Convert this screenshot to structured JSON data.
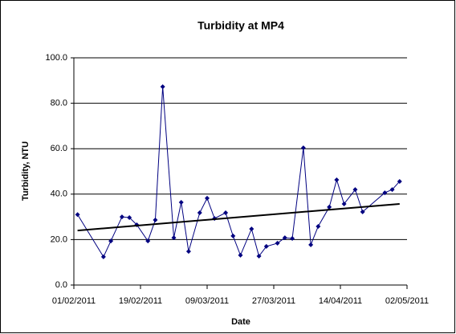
{
  "chart_data": {
    "type": "line",
    "title": "Turbidity at MP4",
    "xlabel": "Date",
    "ylabel": "Turbidity, NTU",
    "x": [
      "2011-02-02",
      "2011-02-09",
      "2011-02-11",
      "2011-02-14",
      "2011-02-16",
      "2011-02-18",
      "2011-02-21",
      "2011-02-23",
      "2011-02-25",
      "2011-02-28",
      "2011-03-02",
      "2011-03-04",
      "2011-03-07",
      "2011-03-09",
      "2011-03-11",
      "2011-03-14",
      "2011-03-16",
      "2011-03-18",
      "2011-03-21",
      "2011-03-23",
      "2011-03-25",
      "2011-03-28",
      "2011-03-30",
      "2011-04-01",
      "2011-04-04",
      "2011-04-06",
      "2011-04-08",
      "2011-04-11",
      "2011-04-13",
      "2011-04-15",
      "2011-04-18",
      "2011-04-20",
      "2011-04-26",
      "2011-04-28",
      "2011-04-30"
    ],
    "series": [
      {
        "color": "#000080",
        "values": [
          31.0,
          12.4,
          19.4,
          30.0,
          29.7,
          26.5,
          19.4,
          28.6,
          87.3,
          20.8,
          36.4,
          14.8,
          31.8,
          38.2,
          29.3,
          31.8,
          21.6,
          13.1,
          24.7,
          12.7,
          17.0,
          18.4,
          20.8,
          20.5,
          60.4,
          17.7,
          25.8,
          34.3,
          46.3,
          35.7,
          42.0,
          32.2,
          40.6,
          42.0,
          45.6
        ]
      }
    ],
    "trendline": {
      "color": "#000000",
      "x": [
        "2011-02-02",
        "2011-04-30"
      ],
      "values": [
        24.0,
        35.7
      ]
    },
    "xlim": [
      "2011-02-01",
      "2011-05-02"
    ],
    "xticks": [
      {
        "value": "2011-02-01",
        "label": "01/02/2011"
      },
      {
        "value": "2011-02-19",
        "label": "19/02/2011"
      },
      {
        "value": "2011-03-09",
        "label": "09/03/2011"
      },
      {
        "value": "2011-03-27",
        "label": "27/03/2011"
      },
      {
        "value": "2011-04-14",
        "label": "14/04/2011"
      },
      {
        "value": "2011-05-02",
        "label": "02/05/2011"
      }
    ],
    "ylim": [
      0,
      100
    ],
    "yticks": [
      {
        "value": 0,
        "label": "0.0"
      },
      {
        "value": 20,
        "label": "20.0"
      },
      {
        "value": 40,
        "label": "40.0"
      },
      {
        "value": 60,
        "label": "60.0"
      },
      {
        "value": 80,
        "label": "80.0"
      },
      {
        "value": 100,
        "label": "100.0"
      }
    ],
    "grid": true
  }
}
